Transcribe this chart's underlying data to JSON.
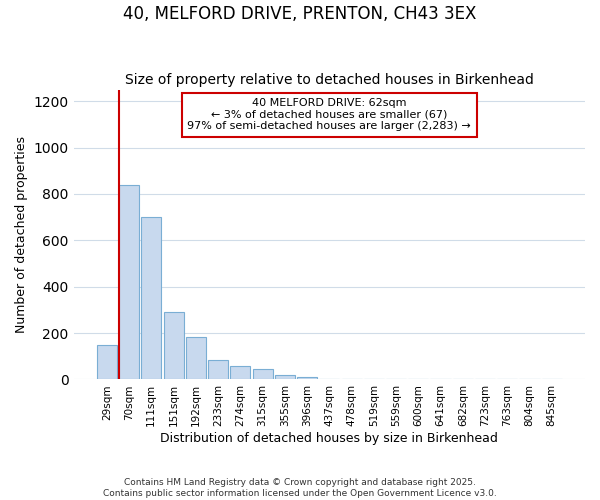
{
  "title1": "40, MELFORD DRIVE, PRENTON, CH43 3EX",
  "title2": "Size of property relative to detached houses in Birkenhead",
  "xlabel": "Distribution of detached houses by size in Birkenhead",
  "ylabel": "Number of detached properties",
  "categories": [
    "29sqm",
    "70sqm",
    "111sqm",
    "151sqm",
    "192sqm",
    "233sqm",
    "274sqm",
    "315sqm",
    "355sqm",
    "396sqm",
    "437sqm",
    "478sqm",
    "519sqm",
    "559sqm",
    "600sqm",
    "641sqm",
    "682sqm",
    "723sqm",
    "763sqm",
    "804sqm",
    "845sqm"
  ],
  "values": [
    150,
    840,
    700,
    290,
    185,
    82,
    58,
    45,
    18,
    10,
    2,
    0,
    0,
    0,
    0,
    0,
    0,
    0,
    0,
    0,
    0
  ],
  "bar_color": "#c8d9ee",
  "bar_edge_color": "#7aaed4",
  "vline_color": "#cc0000",
  "annotation_text": "40 MELFORD DRIVE: 62sqm\n← 3% of detached houses are smaller (67)\n97% of semi-detached houses are larger (2,283) →",
  "annotation_box_color": "white",
  "annotation_box_edge_color": "#cc0000",
  "ylim": [
    0,
    1250
  ],
  "yticks": [
    0,
    200,
    400,
    600,
    800,
    1000,
    1200
  ],
  "grid_color": "#d0dce8",
  "background_color": "#ffffff",
  "title1_fontsize": 12,
  "title2_fontsize": 10,
  "footer1": "Contains HM Land Registry data © Crown copyright and database right 2025.",
  "footer2": "Contains public sector information licensed under the Open Government Licence v3.0."
}
